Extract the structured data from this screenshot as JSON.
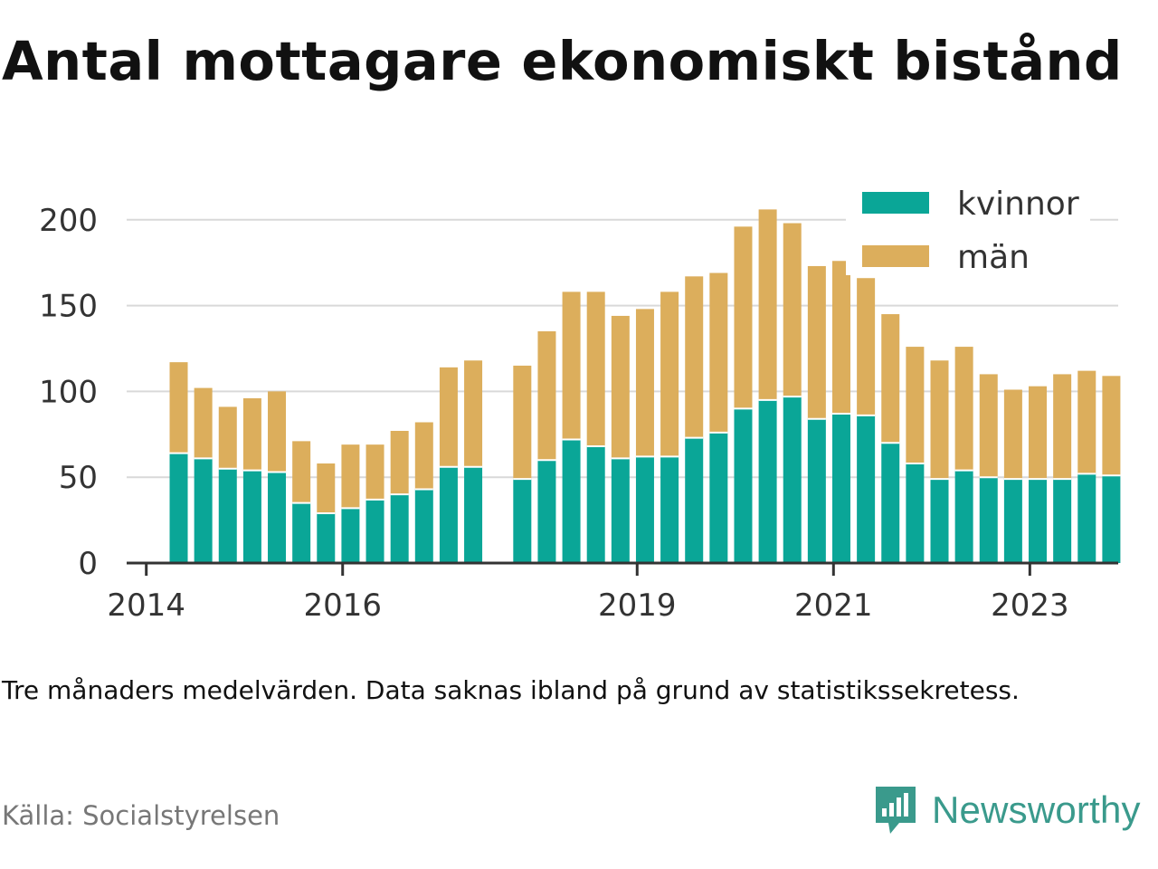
{
  "title": "Antal mottagare ekonomiskt bistånd",
  "note": "Tre månaders medelvärden. Data saknas ibland på grund av statistikssekretess.",
  "source": "Källa: Socialstyrelsen",
  "brand": {
    "name": "Newsworthy",
    "icon": "newsworthy-bar-chart-icon"
  },
  "colors": {
    "kvinnor": "#0aa697",
    "man": "#dcae5c",
    "grid": "#d9d9d9",
    "axis": "#333333",
    "text": "#333333",
    "brand": "#3a9a8c"
  },
  "chart_data": {
    "type": "bar",
    "stacked": true,
    "title": "Antal mottagare ekonomiskt bistånd",
    "ylim": [
      0,
      212
    ],
    "yticks": [
      0,
      50,
      100,
      150,
      200
    ],
    "grid": true,
    "legend_position": "top-right",
    "xlim": [
      2013.8,
      2023.9
    ],
    "xticks": [
      {
        "label": "2014",
        "x": 2014.0
      },
      {
        "label": "2016",
        "x": 2016.0
      },
      {
        "label": "2019",
        "x": 2019.0
      },
      {
        "label": "2021",
        "x": 2021.0
      },
      {
        "label": "2023",
        "x": 2023.0
      }
    ],
    "x": [
      2014.33,
      2014.58,
      2014.83,
      2015.08,
      2015.33,
      2015.58,
      2015.83,
      2016.08,
      2016.33,
      2016.58,
      2016.83,
      2017.08,
      2017.33,
      2017.83,
      2018.08,
      2018.33,
      2018.58,
      2018.83,
      2019.08,
      2019.33,
      2019.58,
      2019.83,
      2020.08,
      2020.33,
      2020.58,
      2020.83,
      2021.08,
      2021.33,
      2021.58,
      2021.83,
      2022.08,
      2022.33,
      2022.58,
      2022.83,
      2023.08,
      2023.33,
      2023.58,
      2023.83
    ],
    "series": [
      {
        "name": "kvinnor",
        "values": [
          64,
          61,
          55,
          54,
          53,
          35,
          29,
          32,
          37,
          40,
          43,
          56,
          56,
          49,
          60,
          72,
          68,
          61,
          62,
          62,
          73,
          76,
          90,
          95,
          97,
          84,
          87,
          86,
          70,
          58,
          49,
          54,
          50,
          49,
          49,
          49,
          52,
          51
        ]
      },
      {
        "name": "män",
        "values": [
          53,
          41,
          36,
          42,
          47,
          36,
          29,
          37,
          32,
          37,
          39,
          58,
          62,
          66,
          75,
          86,
          90,
          83,
          86,
          96,
          94,
          93,
          106,
          111,
          101,
          89,
          89,
          80,
          75,
          68,
          69,
          72,
          60,
          52,
          54,
          61,
          60,
          58
        ]
      }
    ]
  }
}
